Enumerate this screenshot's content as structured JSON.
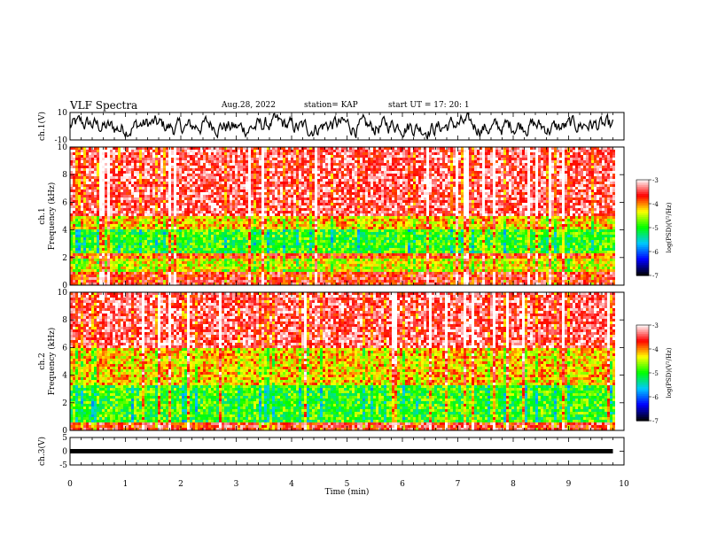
{
  "header": {
    "title": "VLF Spectra",
    "date": "Aug.28, 2022",
    "station": "station= KAP",
    "start_ut": "start  UT  =   17: 20: 1"
  },
  "chart_data": [
    {
      "type": "line",
      "name": "ch1-waveform",
      "ylabel": "ch.1(V)",
      "ylim": [
        -10,
        10
      ],
      "yticks": [
        "10",
        "-10"
      ],
      "xlim": [
        0,
        10
      ],
      "data_extent_min": [
        0,
        9.8
      ],
      "trace_color": "#000000",
      "grid": false
    },
    {
      "type": "heatmap",
      "name": "ch1-spectrogram",
      "ylabel": "ch.1\nFrequency  (kHz)",
      "ylim": [
        0,
        10
      ],
      "yticks": [
        "0",
        "2",
        "4",
        "6",
        "8",
        "10"
      ],
      "xlim": [
        0,
        10
      ],
      "data_extent_min": [
        0,
        9.8
      ],
      "dominant_band_log_psd": [
        {
          "from_khz": 0,
          "to_khz": 1,
          "level": -3.6
        },
        {
          "from_khz": 1,
          "to_khz": 2,
          "level": -4.4
        },
        {
          "from_khz": 2,
          "to_khz": 2.4,
          "level": -3.8
        },
        {
          "from_khz": 2.4,
          "to_khz": 4,
          "level": -4.9
        },
        {
          "from_khz": 4,
          "to_khz": 5,
          "level": -4.2
        },
        {
          "from_khz": 5,
          "to_khz": 10,
          "level": -3.4
        }
      ]
    },
    {
      "type": "heatmap",
      "name": "ch2-spectrogram",
      "ylabel": "ch.2\nFrequency  (kHz)",
      "ylim": [
        0,
        10
      ],
      "yticks": [
        "0",
        "2",
        "4",
        "6",
        "8",
        "10"
      ],
      "xlim": [
        0,
        10
      ],
      "data_extent_min": [
        0,
        9.8
      ],
      "dominant_band_log_psd": [
        {
          "from_khz": 0,
          "to_khz": 0.6,
          "level": -3.6
        },
        {
          "from_khz": 0.6,
          "to_khz": 3.2,
          "level": -4.9
        },
        {
          "from_khz": 3.2,
          "to_khz": 6,
          "level": -4.2
        },
        {
          "from_khz": 6,
          "to_khz": 10,
          "level": -3.4
        }
      ]
    },
    {
      "type": "line",
      "name": "ch3-waveform",
      "ylabel": "ch.3(V)",
      "ylim": [
        -5,
        5
      ],
      "yticks": [
        "5",
        "0",
        "-5"
      ],
      "xlim": [
        0,
        10
      ],
      "data_extent_min": [
        0,
        9.8
      ],
      "trace_level_v": 0,
      "trace_color": "#000000",
      "grid": false
    }
  ],
  "x_axis": {
    "label": "Time  (min)",
    "ticks": [
      "0",
      "1",
      "2",
      "3",
      "4",
      "5",
      "6",
      "7",
      "8",
      "9",
      "10"
    ]
  },
  "colorbar": {
    "label": "log(PSD)(V²/Hz)",
    "range": [
      -7,
      -3
    ],
    "ticks": [
      "-3",
      "-4",
      "-5",
      "-6",
      "-7"
    ],
    "colors": [
      "#000000",
      "#0000ff",
      "#00c8ff",
      "#00ff00",
      "#ffff00",
      "#ff0000",
      "#ffffff"
    ]
  }
}
